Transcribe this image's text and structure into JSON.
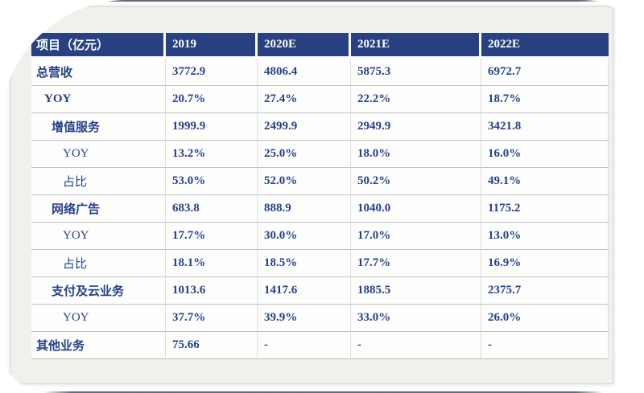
{
  "table": {
    "header": [
      "项目（亿元）",
      "2019",
      "2020E",
      "2021E",
      "2022E"
    ],
    "rows": [
      {
        "label": "总营收",
        "indent": 0,
        "bold": true,
        "values": [
          "3772.9",
          "4806.4",
          "5875.3",
          "6972.7"
        ]
      },
      {
        "label": "YOY",
        "indent": 1,
        "bold": true,
        "values": [
          "20.7%",
          "27.4%",
          "22.2%",
          "18.7%"
        ]
      },
      {
        "label": "增值服务",
        "indent": 2,
        "bold": true,
        "values": [
          "1999.9",
          "2499.9",
          "2949.9",
          "3421.8"
        ]
      },
      {
        "label": "YOY",
        "indent": 3,
        "bold": false,
        "values": [
          "13.2%",
          "25.0%",
          "18.0%",
          "16.0%"
        ]
      },
      {
        "label": "占比",
        "indent": 3,
        "bold": false,
        "values": [
          "53.0%",
          "52.0%",
          "50.2%",
          "49.1%"
        ]
      },
      {
        "label": "网络广告",
        "indent": 2,
        "bold": true,
        "values": [
          "683.8",
          "888.9",
          "1040.0",
          "1175.2"
        ]
      },
      {
        "label": "YOY",
        "indent": 3,
        "bold": false,
        "values": [
          "17.7%",
          "30.0%",
          "17.0%",
          "13.0%"
        ]
      },
      {
        "label": "占比",
        "indent": 3,
        "bold": false,
        "values": [
          "18.1%",
          "18.5%",
          "17.7%",
          "16.9%"
        ]
      },
      {
        "label": "支付及云业务",
        "indent": 2,
        "bold": true,
        "values": [
          "1013.6",
          "1417.6",
          "1885.5",
          "2375.7"
        ]
      },
      {
        "label": "YOY",
        "indent": 3,
        "bold": false,
        "values": [
          "37.7%",
          "39.9%",
          "33.0%",
          "26.0%"
        ]
      },
      {
        "label": "其他业务",
        "indent": 0,
        "bold": true,
        "values": [
          "75.66",
          "-",
          "-",
          "-"
        ]
      }
    ],
    "style": {
      "header_bg": "#2a4181",
      "header_text": "#ffffff",
      "value_text": "#25418a",
      "grid_h": "#bdc0c7",
      "grid_v": "#dcdde0",
      "cell_bg": "#fdfdfc",
      "margin_bg": "#f2f0ec"
    }
  }
}
